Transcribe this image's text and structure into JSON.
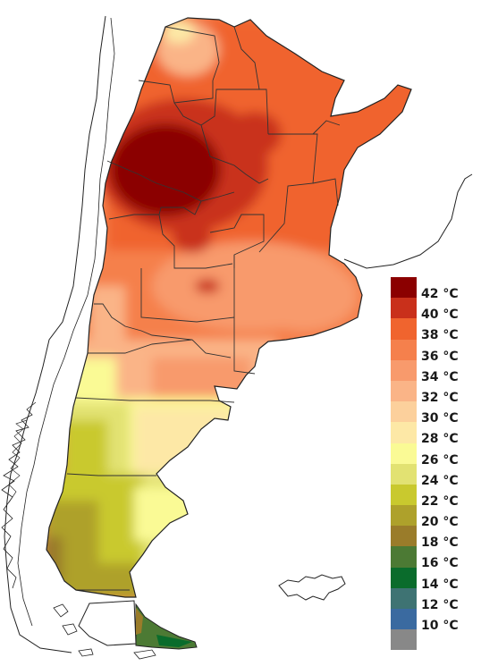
{
  "legend": {
    "items": [
      {
        "label": "42 °C",
        "color": "#8b0000"
      },
      {
        "label": "40 °C",
        "color": "#c9301b"
      },
      {
        "label": "38 °C",
        "color": "#f0642e"
      },
      {
        "label": "36 °C",
        "color": "#f5804c"
      },
      {
        "label": "34 °C",
        "color": "#f89a6c"
      },
      {
        "label": "32 °C",
        "color": "#fab487"
      },
      {
        "label": "30 °C",
        "color": "#fcd09c"
      },
      {
        "label": "28 °C",
        "color": "#fde8a6"
      },
      {
        "label": "26 °C",
        "color": "#fafa95"
      },
      {
        "label": "24 °C",
        "color": "#e2e272"
      },
      {
        "label": "22 °C",
        "color": "#c9c92e"
      },
      {
        "label": "20 °C",
        "color": "#aea12b"
      },
      {
        "label": "18 °C",
        "color": "#9a7c2a"
      },
      {
        "label": "16 °C",
        "color": "#4c7a34"
      },
      {
        "label": "14 °C",
        "color": "#0a6c2c"
      },
      {
        "label": "12 °C",
        "color": "#3e7373"
      },
      {
        "label": "10 °C",
        "color": "#3a6aa0"
      },
      {
        "label": "",
        "color": "#888888"
      }
    ]
  }
}
